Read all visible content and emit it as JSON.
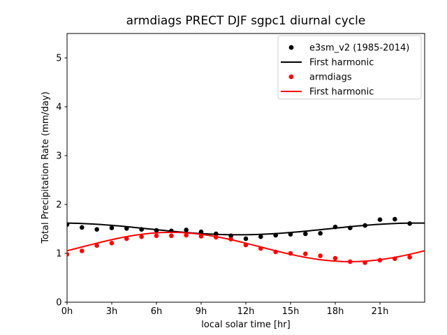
{
  "figure": {
    "background": "#ffffff"
  },
  "chart_data": {
    "type": "scatter",
    "title": "armdiags PRECT DJF sgpc1 diurnal cycle",
    "xlabel": "local solar time [hr]",
    "ylabel": "Total Precipitation Rate (mm/day)",
    "xlim": [
      0,
      24
    ],
    "ylim": [
      0,
      5.5
    ],
    "grid": false,
    "frame_color": "#000000",
    "xticks": [
      {
        "value": 0,
        "label": "0h"
      },
      {
        "value": 3,
        "label": "3h"
      },
      {
        "value": 6,
        "label": "6h"
      },
      {
        "value": 9,
        "label": "9h"
      },
      {
        "value": 12,
        "label": "12h"
      },
      {
        "value": 15,
        "label": "15h"
      },
      {
        "value": 18,
        "label": "18h"
      },
      {
        "value": 21,
        "label": "21h"
      }
    ],
    "yticks": [
      {
        "value": 0,
        "label": "0"
      },
      {
        "value": 1,
        "label": "1"
      },
      {
        "value": 2,
        "label": "2"
      },
      {
        "value": 3,
        "label": "3"
      },
      {
        "value": 4,
        "label": "4"
      },
      {
        "value": 5,
        "label": "5"
      }
    ],
    "x_hours": [
      0,
      1,
      2,
      3,
      4,
      5,
      6,
      7,
      8,
      9,
      10,
      11,
      12,
      13,
      14,
      15,
      16,
      17,
      18,
      19,
      20,
      21,
      22,
      23
    ],
    "series": [
      {
        "name": "e3sm_v2 (1985-2014)",
        "type": "scatter",
        "marker": "dot",
        "color": "#000000",
        "values": [
          1.59,
          1.53,
          1.49,
          1.52,
          1.51,
          1.49,
          1.47,
          1.46,
          1.48,
          1.44,
          1.4,
          1.36,
          1.3,
          1.34,
          1.37,
          1.39,
          1.4,
          1.41,
          1.54,
          1.52,
          1.57,
          1.69,
          1.7,
          1.61
        ]
      },
      {
        "name": "First harmonic",
        "type": "line",
        "color": "#000000",
        "harmonic": {
          "mean": 1.5,
          "amplitude": 0.12,
          "peak_hour": 23.5
        }
      },
      {
        "name": "armdiags",
        "type": "scatter",
        "marker": "dot",
        "color": "#ff0000",
        "values": [
          0.98,
          1.05,
          1.16,
          1.21,
          1.3,
          1.34,
          1.36,
          1.36,
          1.37,
          1.35,
          1.33,
          1.29,
          1.17,
          1.1,
          1.03,
          1.0,
          0.99,
          0.95,
          0.9,
          0.83,
          0.81,
          0.86,
          0.89,
          0.92
        ]
      },
      {
        "name": "First harmonic",
        "type": "line",
        "color": "#ff0000",
        "harmonic": {
          "mean": 1.13,
          "amplitude": 0.3,
          "peak_hour": 7.0
        }
      }
    ],
    "legend": {
      "position": "upper right",
      "border_color": "#cccccc",
      "background": "#ffffff",
      "entries": [
        {
          "label": "e3sm_v2 (1985-2014)",
          "marker": "dot",
          "color": "#000000"
        },
        {
          "label": "First harmonic",
          "marker": "line",
          "color": "#000000"
        },
        {
          "label": "armdiags",
          "marker": "dot",
          "color": "#ff0000"
        },
        {
          "label": "First harmonic",
          "marker": "line",
          "color": "#ff0000"
        }
      ]
    }
  }
}
